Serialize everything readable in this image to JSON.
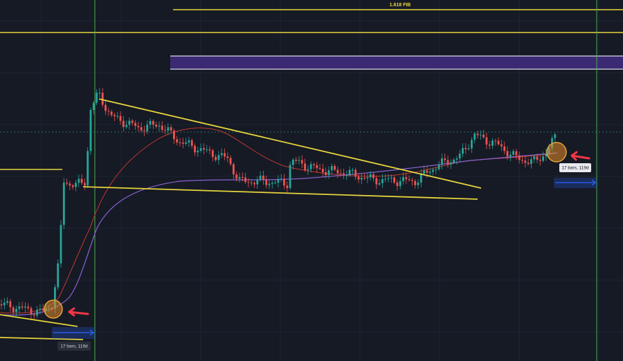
{
  "annotations": {
    "fib_label": "1.618 FIB",
    "measure_left": "17 bars, 119d",
    "measure_right": "17 bars, 119d"
  }
}
